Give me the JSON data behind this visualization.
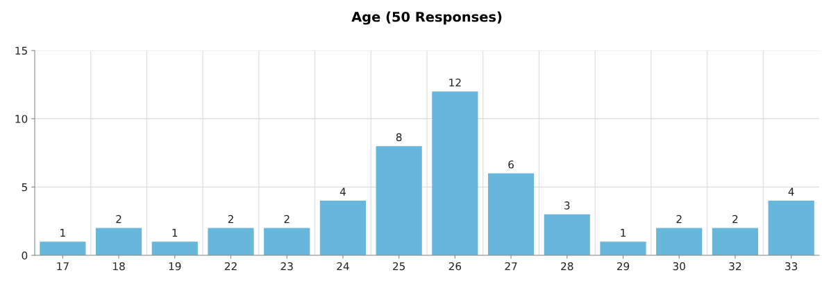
{
  "chart_data": {
    "type": "bar",
    "title": "Age (50 Responses)",
    "categories": [
      "17",
      "18",
      "19",
      "22",
      "23",
      "24",
      "25",
      "26",
      "27",
      "28",
      "29",
      "30",
      "32",
      "33"
    ],
    "values": [
      1,
      2,
      1,
      2,
      2,
      4,
      8,
      12,
      6,
      3,
      1,
      2,
      2,
      4
    ],
    "color": "#67b6dc",
    "ylim": [
      0,
      15
    ],
    "yticks": [
      0,
      5,
      10,
      15
    ],
    "grid": true,
    "data_labels": true
  }
}
